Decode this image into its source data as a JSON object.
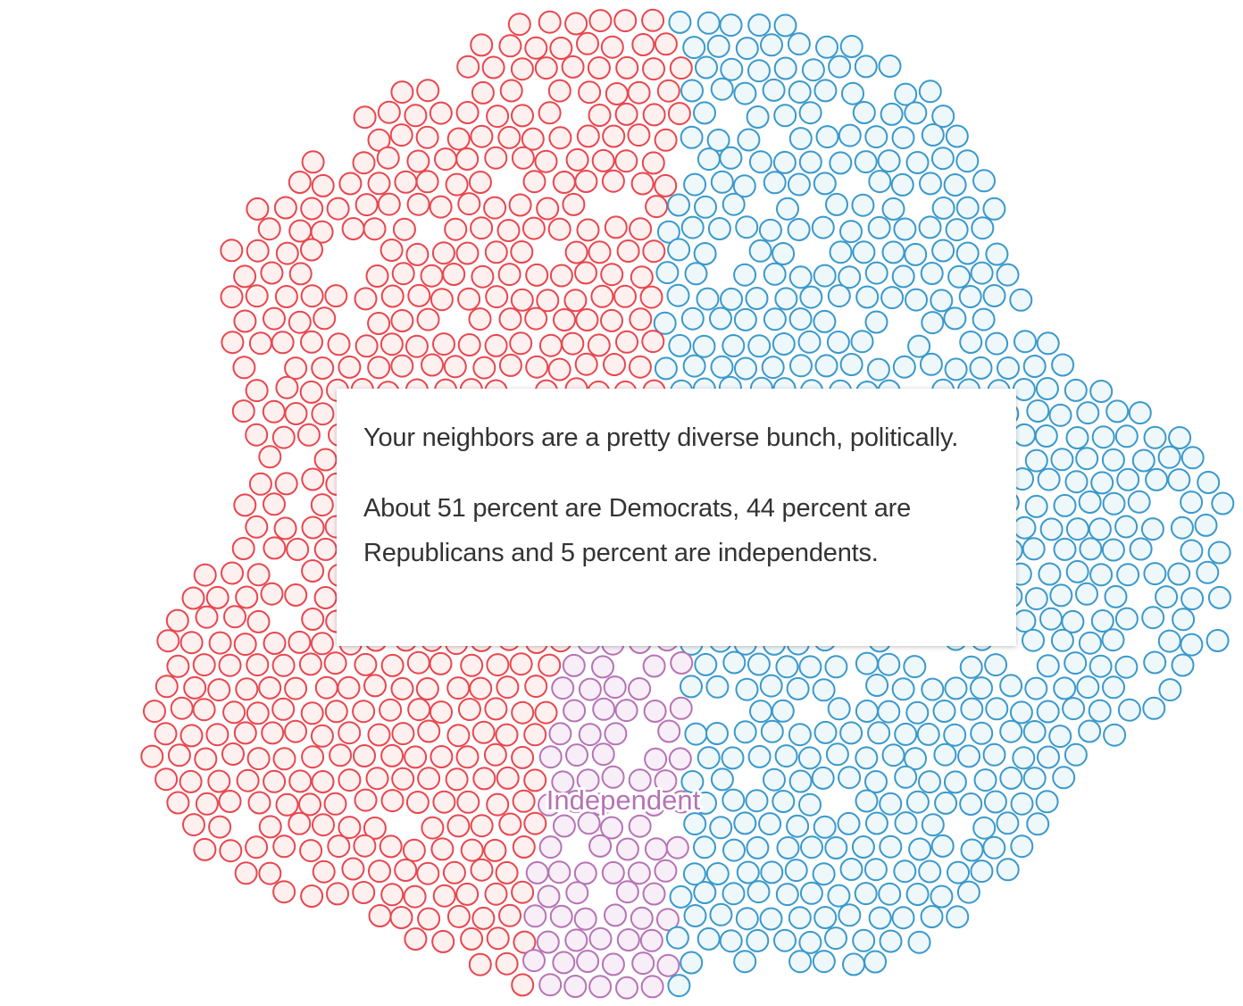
{
  "chart_data": {
    "type": "dot-cluster",
    "unit": "neighbor",
    "groups": [
      {
        "name": "Republican",
        "percent": 44,
        "stroke": "#e8474e",
        "fill": "#fff0f0"
      },
      {
        "name": "Independent",
        "percent": 5,
        "stroke": "#b673b5",
        "fill": "#f8eef8"
      },
      {
        "name": "Democrat",
        "percent": 51,
        "stroke": "#3a99cc",
        "fill": "#eef8fb"
      }
    ],
    "annotations": [
      {
        "group": "Independent",
        "text": "Independent",
        "color": "#b673b5"
      }
    ]
  },
  "tooltip": {
    "paragraphs": [
      "Your neighbors are a pretty diverse bunch, politically.",
      "About 51 percent are Democrats, 44 percent are Republicans and 5 percent are independents."
    ]
  }
}
